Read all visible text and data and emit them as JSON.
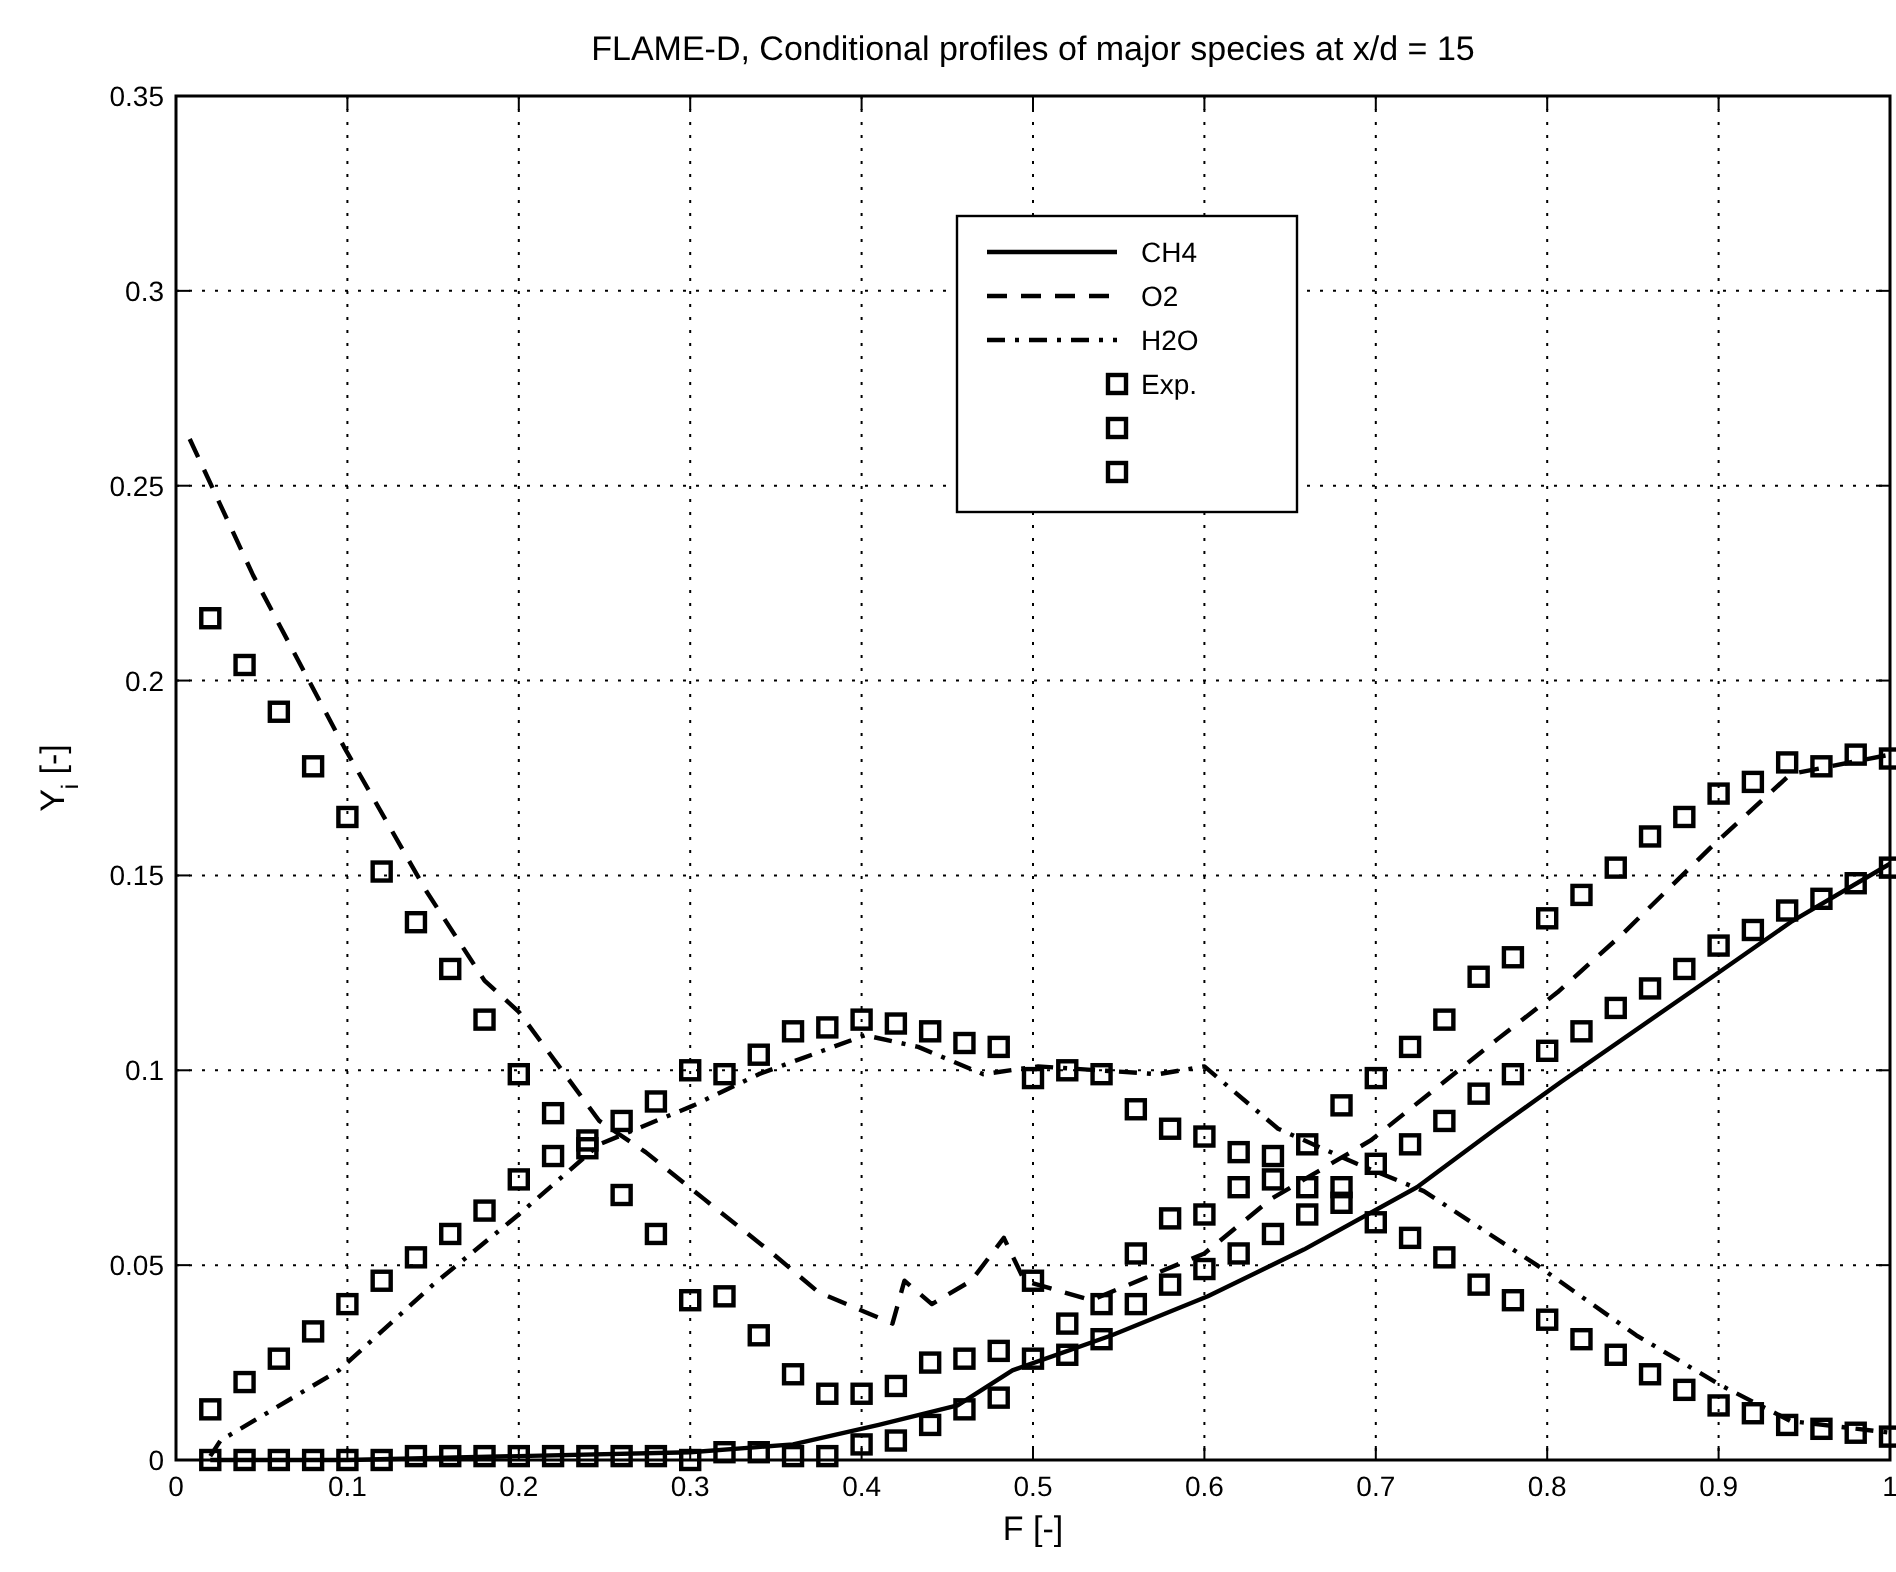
{
  "chart_data": {
    "type": "line",
    "title": "FLAME-D, Conditional profiles of major species at x/d = 15",
    "xlabel": "F [-]",
    "ylabel": "Y$_{i}$ [-]",
    "xlim": [
      0,
      1
    ],
    "ylim": [
      0,
      0.35
    ],
    "xticks": [
      0,
      0.1,
      0.2,
      0.3,
      0.4,
      0.5,
      0.6,
      0.7,
      0.8,
      0.9,
      1
    ],
    "yticks": [
      0,
      0.05,
      0.1,
      0.15,
      0.2,
      0.25,
      0.3,
      0.35
    ],
    "grid": true,
    "legend": "top",
    "series": [
      {
        "name": "CH4",
        "color": "#000000",
        "line_style": "solid",
        "x": [
          0.02,
          0.1,
          0.2,
          0.3,
          0.36,
          0.41,
          0.456,
          0.488,
          0.546,
          0.602,
          0.658,
          0.724,
          0.77,
          0.808,
          0.89,
          0.942,
          1
        ],
        "values": [
          0,
          0,
          0.001,
          0.002,
          0.004,
          0.009,
          0.014,
          0.023,
          0.032,
          0.042,
          0.054,
          0.07,
          0.085,
          0.097,
          0.122,
          0.138,
          0.153
        ]
      },
      {
        "name": "O2",
        "color": "#000000",
        "line_style": "dashed",
        "x": [
          0.008,
          0.045,
          0.098,
          0.146,
          0.18,
          0.2,
          0.247,
          0.274,
          0.308,
          0.348,
          0.375,
          0.402,
          0.418,
          0.425,
          0.441,
          0.464,
          0.483,
          0.495,
          0.534,
          0.6,
          0.639,
          0.697,
          0.771,
          0.806,
          0.844,
          0.895,
          0.942,
          1
        ],
        "values": [
          0.262,
          0.227,
          0.183,
          0.146,
          0.123,
          0.115,
          0.087,
          0.079,
          0.067,
          0.053,
          0.043,
          0.038,
          0.035,
          0.046,
          0.04,
          0.046,
          0.057,
          0.046,
          0.041,
          0.053,
          0.067,
          0.082,
          0.108,
          0.12,
          0.135,
          0.157,
          0.176,
          0.181
        ]
      },
      {
        "name": "H2O",
        "color": "#000000",
        "line_style": "dashdot",
        "x": [
          0.02,
          0.026,
          0.095,
          0.15,
          0.2,
          0.247,
          0.302,
          0.34,
          0.402,
          0.433,
          0.471,
          0.503,
          0.573,
          0.6,
          0.643,
          0.689,
          0.728,
          0.794,
          0.852,
          0.902,
          0.942,
          1
        ],
        "values": [
          0.001,
          0.005,
          0.023,
          0.045,
          0.063,
          0.081,
          0.091,
          0.099,
          0.109,
          0.106,
          0.099,
          0.101,
          0.099,
          0.101,
          0.085,
          0.076,
          0.069,
          0.05,
          0.032,
          0.019,
          0.01,
          0.007
        ]
      },
      {
        "name": "Exp.",
        "type": "scatter",
        "color": "#000000",
        "marker": "square",
        "x": [
          0.02,
          0.04,
          0.06,
          0.08,
          0.1,
          0.12,
          0.14,
          0.16,
          0.18,
          0.2,
          0.22,
          0.24,
          0.26,
          0.28,
          0.3,
          0.32,
          0.34,
          0.36,
          0.38,
          0.4,
          0.42,
          0.44,
          0.46,
          0.48,
          0.5,
          0.52,
          0.54,
          0.56,
          0.58,
          0.6,
          0.62,
          0.64,
          0.66,
          0.68,
          0.7,
          0.72,
          0.74,
          0.76,
          0.78,
          0.8,
          0.82,
          0.84,
          0.86,
          0.88,
          0.9,
          0.92,
          0.94,
          0.96,
          0.98,
          1
        ],
        "values": [
          0,
          0,
          0,
          0,
          0,
          0,
          0.001,
          0.001,
          0.001,
          0.001,
          0.001,
          0.001,
          0.001,
          0.001,
          0,
          0.002,
          0.002,
          0.001,
          0.001,
          0.004,
          0.005,
          0.009,
          0.013,
          0.016,
          0.026,
          0.027,
          0.031,
          0.04,
          0.045,
          0.049,
          0.053,
          0.058,
          0.063,
          0.07,
          0.076,
          0.081,
          0.087,
          0.094,
          0.099,
          0.105,
          0.11,
          0.116,
          0.121,
          0.126,
          0.132,
          0.136,
          0.141,
          0.144,
          0.148,
          0.152
        ]
      },
      {
        "type": "scatter",
        "color": "#000000",
        "marker": "square",
        "x": [
          0.02,
          0.04,
          0.06,
          0.08,
          0.1,
          0.12,
          0.14,
          0.16,
          0.18,
          0.2,
          0.22,
          0.24,
          0.26,
          0.28,
          0.3,
          0.32,
          0.34,
          0.36,
          0.38,
          0.4,
          0.42,
          0.44,
          0.46,
          0.48,
          0.5,
          0.52,
          0.54,
          0.56,
          0.58,
          0.6,
          0.62,
          0.64,
          0.66,
          0.68,
          0.7,
          0.72,
          0.74,
          0.76,
          0.78,
          0.8,
          0.82,
          0.84,
          0.86,
          0.88,
          0.9,
          0.92,
          0.94,
          0.96,
          0.98,
          1
        ],
        "values": [
          0.216,
          0.204,
          0.192,
          0.178,
          0.165,
          0.151,
          0.138,
          0.126,
          0.113,
          0.099,
          0.089,
          0.082,
          0.068,
          0.058,
          0.041,
          0.042,
          0.032,
          0.022,
          0.017,
          0.017,
          0.019,
          0.025,
          0.026,
          0.028,
          0.046,
          0.035,
          0.04,
          0.053,
          0.062,
          0.063,
          0.07,
          0.078,
          0.081,
          0.091,
          0.098,
          0.106,
          0.113,
          0.124,
          0.129,
          0.139,
          0.145,
          0.152,
          0.16,
          0.165,
          0.171,
          0.174,
          0.179,
          0.178,
          0.181,
          0.18
        ]
      },
      {
        "type": "scatter",
        "color": "#000000",
        "marker": "square",
        "x": [
          0.02,
          0.04,
          0.06,
          0.08,
          0.1,
          0.12,
          0.14,
          0.16,
          0.18,
          0.2,
          0.22,
          0.24,
          0.26,
          0.28,
          0.3,
          0.32,
          0.34,
          0.36,
          0.38,
          0.4,
          0.42,
          0.44,
          0.46,
          0.48,
          0.5,
          0.52,
          0.54,
          0.56,
          0.58,
          0.6,
          0.62,
          0.64,
          0.66,
          0.68,
          0.7,
          0.72,
          0.74,
          0.76,
          0.78,
          0.8,
          0.82,
          0.84,
          0.86,
          0.88,
          0.9,
          0.92,
          0.94,
          0.96,
          0.98,
          1
        ],
        "values": [
          0.013,
          0.02,
          0.026,
          0.033,
          0.04,
          0.046,
          0.052,
          0.058,
          0.064,
          0.072,
          0.078,
          0.08,
          0.087,
          0.092,
          0.1,
          0.099,
          0.104,
          0.11,
          0.111,
          0.113,
          0.112,
          0.11,
          0.107,
          0.106,
          0.098,
          0.1,
          0.099,
          0.09,
          0.085,
          0.083,
          0.079,
          0.072,
          0.07,
          0.066,
          0.061,
          0.057,
          0.052,
          0.045,
          0.041,
          0.036,
          0.031,
          0.027,
          0.022,
          0.018,
          0.014,
          0.012,
          0.009,
          0.008,
          0.007,
          0.006
        ]
      }
    ]
  }
}
